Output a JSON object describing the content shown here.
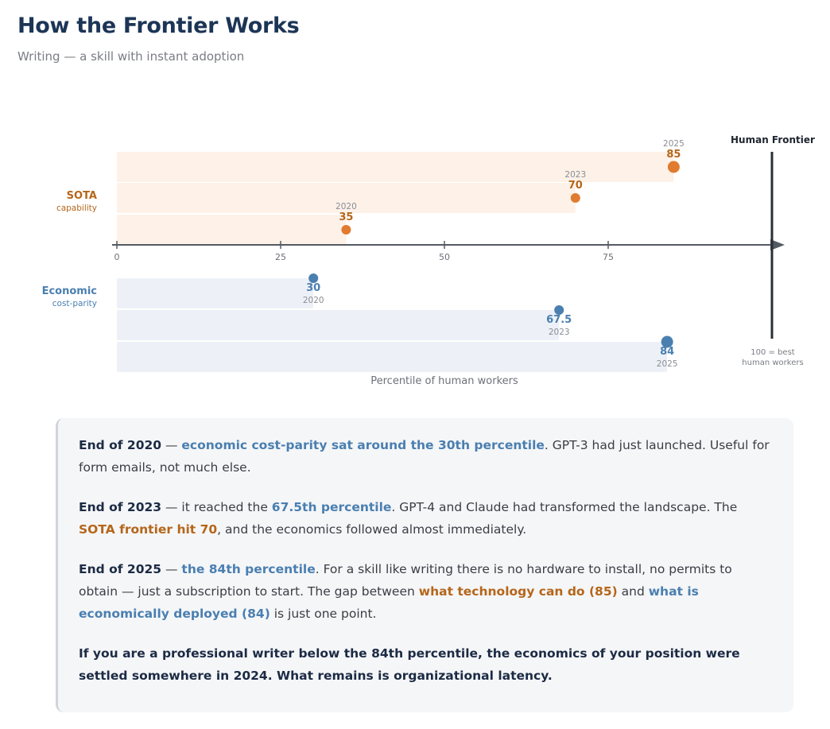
{
  "header": {
    "title": "How the Frontier Works",
    "subtitle": "Writing — a skill with instant adoption"
  },
  "chart_data": {
    "type": "bar",
    "orientation": "horizontal",
    "xlabel": "Percentile of human workers",
    "xlim": [
      0,
      100
    ],
    "x_ticks": [
      0,
      25,
      50,
      75
    ],
    "frontier": {
      "label": "Human Frontier",
      "value": 100,
      "note_line1": "100 = best",
      "note_line2": "human workers"
    },
    "series": [
      {
        "name": "SOTA",
        "sublabel": "capability",
        "color": "#e07b2f",
        "label_color": "#b5661a",
        "band_color": "#fdf1e8",
        "points": [
          {
            "year": "2020",
            "value": 35
          },
          {
            "year": "2023",
            "value": 70
          },
          {
            "year": "2025",
            "value": 85
          }
        ]
      },
      {
        "name": "Economic",
        "sublabel": "cost-parity",
        "color": "#4a7fb0",
        "label_color": "#4a7fb0",
        "band_color": "#edf1f7",
        "points": [
          {
            "year": "2020",
            "value": 30
          },
          {
            "year": "2023",
            "value": 67.5
          },
          {
            "year": "2025",
            "value": 84
          }
        ]
      }
    ]
  },
  "notes": {
    "p1": {
      "lead": "End of 2020",
      "sep": " — ",
      "hl": "economic cost-parity sat around the 30th percentile",
      "rest": ". GPT-3 had just launched. Useful for form emails, not much else."
    },
    "p2": {
      "lead": "End of 2023",
      "t1": " — it reached the ",
      "hl1": "67.5th percentile",
      "t2": ". GPT-4 and Claude had transformed the landscape. The ",
      "hl2": "SOTA frontier hit 70",
      "t3": ", and the economics followed almost immediately."
    },
    "p3": {
      "lead": "End of 2025",
      "sep": " — ",
      "hl1": "the 84th percentile",
      "t1": ". For a skill like writing there is no hardware to install, no permits to obtain — just a subscription to start. The gap between ",
      "hl2": "what technology can do (85)",
      "t2": " and ",
      "hl3": "what is economically deployed (84)",
      "t3": " is just one point."
    },
    "p4": "If you are a professional writer below the 84th percentile, the economics of your position were settled somewhere in 2024. What remains is organizational latency."
  }
}
